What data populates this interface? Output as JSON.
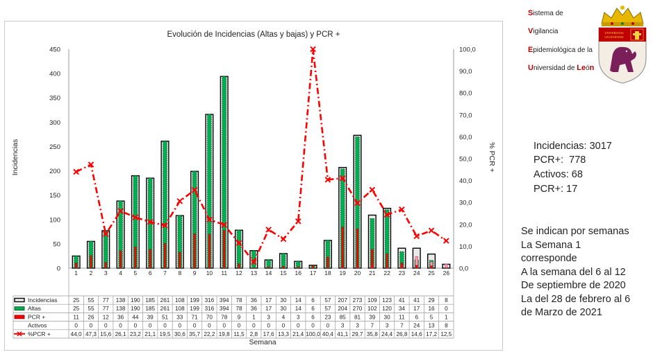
{
  "brand": {
    "line1_initial": "S",
    "line1_rest": "istema de",
    "line2_initial": "V",
    "line2_rest": "igilancia",
    "line3_initial": "E",
    "line3_rest": "pidemiológica de la",
    "line4_initial": "U",
    "line4_rest": "niversidad de ",
    "line4_le": "Le",
    "line4_o": "ó",
    "line4_n": "n",
    "crest_text_1": "UNIVERSITAS",
    "crest_text_2": "LEGIONENSIS",
    "accent": "#c00000"
  },
  "stats": {
    "incidencias": "Incidencias: 3017",
    "pcr": "PCR+:  778",
    "activos": "Activos: 68",
    "pcr_activos": "PCR+: 17"
  },
  "note": {
    "lines": [
      "Se indican por semanas",
      "La Semana 1",
      "corresponde",
      "A la semana del 6 al 12",
      "De septiembre de 2020",
      "La  del 28 de febrero al 6",
      "de Marzo de 2021"
    ]
  },
  "chart_data": {
    "type": "bar",
    "title": "Evolución de Incidencias (Altas y bajas) y PCR +",
    "xlabel": "Semana",
    "ylabel": "Incidencias",
    "y2label": "% PCR +",
    "ylim": [
      0,
      450
    ],
    "yticks": [
      "0",
      "50",
      "100",
      "150",
      "200",
      "250",
      "300",
      "350",
      "400",
      "450"
    ],
    "y2lim": [
      0,
      100
    ],
    "y2ticks": [
      "0,0",
      "10,0",
      "20,0",
      "30,0",
      "40,0",
      "50,0",
      "60,0",
      "70,0",
      "80,0",
      "90,0",
      "100,0"
    ],
    "categories": [
      "1",
      "2",
      "3",
      "4",
      "5",
      "6",
      "7",
      "8",
      "9",
      "10",
      "11",
      "12",
      "13",
      "14",
      "15",
      "16",
      "17",
      "18",
      "19",
      "20",
      "21",
      "22",
      "23",
      "24",
      "25",
      "26"
    ],
    "series": [
      {
        "name": "Incidencias",
        "color": "#000000",
        "fill": "#e8e8e8",
        "values": [
          25,
          55,
          77,
          138,
          190,
          185,
          261,
          108,
          199,
          316,
          394,
          78,
          36,
          17,
          30,
          14,
          6,
          57,
          207,
          273,
          109,
          123,
          41,
          41,
          29,
          8
        ],
        "labels": [
          "25",
          "55",
          "77",
          "138",
          "190",
          "185",
          "261",
          "108",
          "199",
          "316",
          "394",
          "78",
          "36",
          "17",
          "30",
          "14",
          "6",
          "57",
          "207",
          "273",
          "109",
          "123",
          "41",
          "41",
          "29",
          "8"
        ]
      },
      {
        "name": "Altas",
        "color": "#00b050",
        "values": [
          25,
          55,
          77,
          138,
          190,
          185,
          261,
          108,
          199,
          316,
          394,
          78,
          36,
          17,
          30,
          14,
          6,
          57,
          204,
          270,
          102,
          120,
          34,
          17,
          16,
          0
        ],
        "labels": [
          "25",
          "55",
          "77",
          "138",
          "190",
          "185",
          "261",
          "108",
          "199",
          "316",
          "394",
          "78",
          "36",
          "17",
          "30",
          "14",
          "6",
          "57",
          "204",
          "270",
          "102",
          "120",
          "34",
          "17",
          "16",
          "0"
        ]
      },
      {
        "name": "PCR +",
        "color": "#ff0000",
        "values": [
          11,
          26,
          12,
          36,
          44,
          39,
          51,
          33,
          71,
          70,
          78,
          9,
          1,
          3,
          4,
          3,
          6,
          23,
          85,
          81,
          39,
          30,
          11,
          6,
          5,
          1
        ],
        "labels": [
          "11",
          "26",
          "12",
          "36",
          "44",
          "39",
          "51",
          "33",
          "71",
          "70",
          "78",
          "9",
          "1",
          "3",
          "4",
          "3",
          "6",
          "23",
          "85",
          "81",
          "39",
          "30",
          "11",
          "6",
          "5",
          "1"
        ]
      },
      {
        "name": "Activos",
        "color": "#f4a0b0",
        "values": [
          0,
          0,
          0,
          0,
          0,
          0,
          0,
          0,
          0,
          0,
          0,
          0,
          0,
          0,
          0,
          0,
          0,
          0,
          3,
          3,
          7,
          3,
          7,
          24,
          13,
          8
        ],
        "labels": [
          "0",
          "0",
          "0",
          "0",
          "0",
          "0",
          "0",
          "0",
          "0",
          "0",
          "0",
          "0",
          "0",
          "0",
          "0",
          "0",
          "0",
          "0",
          "3",
          "3",
          "7",
          "3",
          "7",
          "24",
          "13",
          "8"
        ]
      },
      {
        "name": "%PCR +",
        "color": "#ff0000",
        "axis": "right",
        "values": [
          44.0,
          47.3,
          15.6,
          26.1,
          23.2,
          21.1,
          19.5,
          30.6,
          35.7,
          22.2,
          19.8,
          11.5,
          2.8,
          17.6,
          13.3,
          21.4,
          100.0,
          40.4,
          41.1,
          29.7,
          35.8,
          24.4,
          26.8,
          14.6,
          17.2,
          12.5
        ],
        "labels": [
          "44,0",
          "47,3",
          "15,6",
          "26,1",
          "23,2",
          "21,1",
          "19,5",
          "30,6",
          "35,7",
          "22,2",
          "19,8",
          "11,5",
          "2,8",
          "17,6",
          "13,3",
          "21,4",
          "100,0",
          "40,4",
          "41,1",
          "29,7",
          "35,8",
          "24,4",
          "26,8",
          "14,6",
          "17,2",
          "12,5"
        ]
      }
    ],
    "grid": false,
    "legend": "table-below"
  }
}
